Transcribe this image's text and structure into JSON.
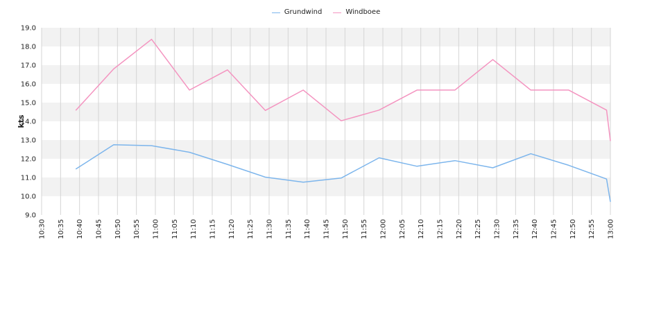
{
  "chart_data": {
    "type": "line",
    "xlabel": "",
    "ylabel": "kts",
    "ylim": [
      9.0,
      19.0
    ],
    "yticks": [
      "9.0",
      "10.0",
      "11.0",
      "12.0",
      "13.0",
      "14.0",
      "15.0",
      "16.0",
      "17.0",
      "18.0",
      "19.0"
    ],
    "xlim": [
      "10:30",
      "13:00"
    ],
    "xticks": [
      "10:30",
      "10:35",
      "10:40",
      "10:45",
      "10:50",
      "10:55",
      "11:00",
      "11:05",
      "11:10",
      "11:15",
      "11:20",
      "11:25",
      "11:30",
      "11:35",
      "11:40",
      "11:45",
      "11:50",
      "11:55",
      "12:00",
      "12:05",
      "12:10",
      "12:15",
      "12:20",
      "12:25",
      "12:30",
      "12:35",
      "12:40",
      "12:45",
      "12:50",
      "12:55",
      "13:00"
    ],
    "grid": true,
    "legend_position": "top-center",
    "series": [
      {
        "name": "Grundwind",
        "color": "#7cb5ec",
        "points": [
          {
            "x": "10:39",
            "y": 11.45
          },
          {
            "x": "10:49",
            "y": 12.75
          },
          {
            "x": "10:59",
            "y": 12.7
          },
          {
            "x": "11:09",
            "y": 12.35
          },
          {
            "x": "11:19",
            "y": 11.7
          },
          {
            "x": "11:29",
            "y": 11.02
          },
          {
            "x": "11:39",
            "y": 10.75
          },
          {
            "x": "11:49",
            "y": 10.97
          },
          {
            "x": "11:59",
            "y": 12.05
          },
          {
            "x": "12:09",
            "y": 11.6
          },
          {
            "x": "12:19",
            "y": 11.9
          },
          {
            "x": "12:29",
            "y": 11.52
          },
          {
            "x": "12:39",
            "y": 12.27
          },
          {
            "x": "12:49",
            "y": 11.65
          },
          {
            "x": "12:59",
            "y": 10.92
          },
          {
            "x": "13:00",
            "y": 9.7
          }
        ]
      },
      {
        "name": "Windboee",
        "color": "#f494c0",
        "points": [
          {
            "x": "10:39",
            "y": 14.58
          },
          {
            "x": "10:49",
            "y": 16.8
          },
          {
            "x": "10:59",
            "y": 18.38
          },
          {
            "x": "11:09",
            "y": 15.67
          },
          {
            "x": "11:19",
            "y": 16.75
          },
          {
            "x": "11:29",
            "y": 14.58
          },
          {
            "x": "11:39",
            "y": 15.67
          },
          {
            "x": "11:49",
            "y": 14.03
          },
          {
            "x": "11:59",
            "y": 14.6
          },
          {
            "x": "12:09",
            "y": 15.67
          },
          {
            "x": "12:19",
            "y": 15.67
          },
          {
            "x": "12:29",
            "y": 17.3
          },
          {
            "x": "12:39",
            "y": 15.67
          },
          {
            "x": "12:49",
            "y": 15.67
          },
          {
            "x": "12:59",
            "y": 14.6
          },
          {
            "x": "13:00",
            "y": 12.95
          }
        ]
      }
    ]
  }
}
